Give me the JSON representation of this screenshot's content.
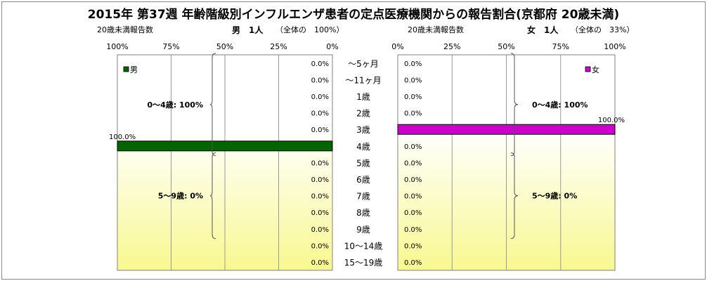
{
  "title": "2015年 第37週 年齢階級別インフルエンザ患者の定点医療機関からの報告割合(京都府 20歳未満)",
  "left_header": {
    "count_label": "20歳未満報告数",
    "sex_count": "男　1人",
    "share": "（全体の　100%）"
  },
  "right_header": {
    "count_label": "20歳未満報告数",
    "sex_count": "女　1人",
    "share": "（全体の　33%）"
  },
  "colors": {
    "male": "#006400",
    "female": "#cc00cc",
    "bg_top": "#ffffff",
    "bg_bottom": "#f8f890"
  },
  "chart_data": [
    {
      "type": "bar",
      "orientation": "horizontal",
      "direction": "right-to-left",
      "legend": "男",
      "legend_position": "top-left",
      "categories": [
        "～5ヶ月",
        "～11ヶ月",
        "1歳",
        "2歳",
        "3歳",
        "4歳",
        "5歳",
        "6歳",
        "7歳",
        "8歳",
        "9歳",
        "10～14歳",
        "15～19歳"
      ],
      "series": [
        {
          "name": "男",
          "values": [
            0,
            0,
            0,
            0,
            0,
            100,
            0,
            0,
            0,
            0,
            0,
            0,
            0
          ],
          "labels": [
            "0.0%",
            "0.0%",
            "0.0%",
            "0.0%",
            "0.0%",
            "100.0%",
            "0.0%",
            "0.0%",
            "0.0%",
            "0.0%",
            "0.0%",
            "0.0%",
            "0.0%"
          ]
        }
      ],
      "x_ticks": [
        "100%",
        "75%",
        "50%",
        "25%",
        "0%"
      ],
      "xlim": [
        0,
        100
      ],
      "brackets": [
        {
          "label": "0～4歳: 100%",
          "from": "～5ヶ月",
          "to": "4歳"
        },
        {
          "label": "5～9歳: 0%",
          "from": "5歳",
          "to": "9歳"
        }
      ],
      "grid": true
    },
    {
      "type": "bar",
      "orientation": "horizontal",
      "direction": "left-to-right",
      "legend": "女",
      "legend_position": "top-right",
      "categories": [
        "～5ヶ月",
        "～11ヶ月",
        "1歳",
        "2歳",
        "3歳",
        "4歳",
        "5歳",
        "6歳",
        "7歳",
        "8歳",
        "9歳",
        "10～14歳",
        "15～19歳"
      ],
      "series": [
        {
          "name": "女",
          "values": [
            0,
            0,
            0,
            0,
            100,
            0,
            0,
            0,
            0,
            0,
            0,
            0,
            0
          ],
          "labels": [
            "0.0%",
            "0.0%",
            "0.0%",
            "0.0%",
            "100.0%",
            "0.0%",
            "0.0%",
            "0.0%",
            "0.0%",
            "0.0%",
            "0.0%",
            "0.0%",
            "0.0%"
          ]
        }
      ],
      "x_ticks": [
        "0%",
        "25%",
        "50%",
        "75%",
        "100%"
      ],
      "xlim": [
        0,
        100
      ],
      "brackets": [
        {
          "label": "0～4歳: 100%",
          "from": "～5ヶ月",
          "to": "4歳"
        },
        {
          "label": "5～9歳: 0%",
          "from": "5歳",
          "to": "9歳"
        }
      ],
      "grid": true
    }
  ]
}
